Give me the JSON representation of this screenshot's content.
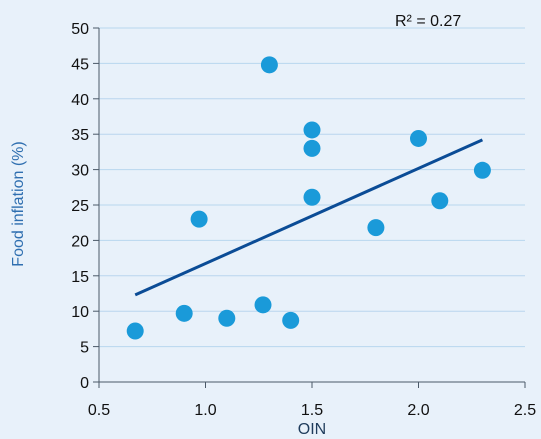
{
  "chart_data": {
    "type": "scatter",
    "title": "",
    "xlabel": "OIN",
    "ylabel": "Food inflation (%)",
    "xlim": [
      0.5,
      2.5
    ],
    "ylim": [
      0,
      50
    ],
    "x_ticks": [
      "0.5",
      "1.0",
      "1.5",
      "2.0",
      "2.5"
    ],
    "y_ticks": [
      "0",
      "5",
      "10",
      "15",
      "20",
      "25",
      "30",
      "35",
      "40",
      "45",
      "50"
    ],
    "grid": "horizontal",
    "annotation": "R² = 0.27",
    "points": [
      {
        "x": 0.67,
        "y": 7.2
      },
      {
        "x": 0.9,
        "y": 9.7
      },
      {
        "x": 0.97,
        "y": 23.0
      },
      {
        "x": 1.1,
        "y": 9.0
      },
      {
        "x": 1.27,
        "y": 10.9
      },
      {
        "x": 1.3,
        "y": 44.8
      },
      {
        "x": 1.4,
        "y": 8.7
      },
      {
        "x": 1.5,
        "y": 35.6
      },
      {
        "x": 1.5,
        "y": 33.0
      },
      {
        "x": 1.5,
        "y": 26.1
      },
      {
        "x": 1.8,
        "y": 21.8
      },
      {
        "x": 2.0,
        "y": 34.4
      },
      {
        "x": 2.1,
        "y": 25.6
      },
      {
        "x": 2.3,
        "y": 29.9
      }
    ],
    "trendline": {
      "x": [
        0.67,
        2.3
      ],
      "y": [
        12.3,
        34.2
      ]
    },
    "colors": {
      "background": "#e8f1fa",
      "point": "#1a9ad9",
      "trendline": "#0b4c96",
      "grid": "#b9d6ee",
      "axis": "#4a5968",
      "ylabel": "#2f6fb0",
      "xlabel": "#1f3c5c"
    }
  }
}
